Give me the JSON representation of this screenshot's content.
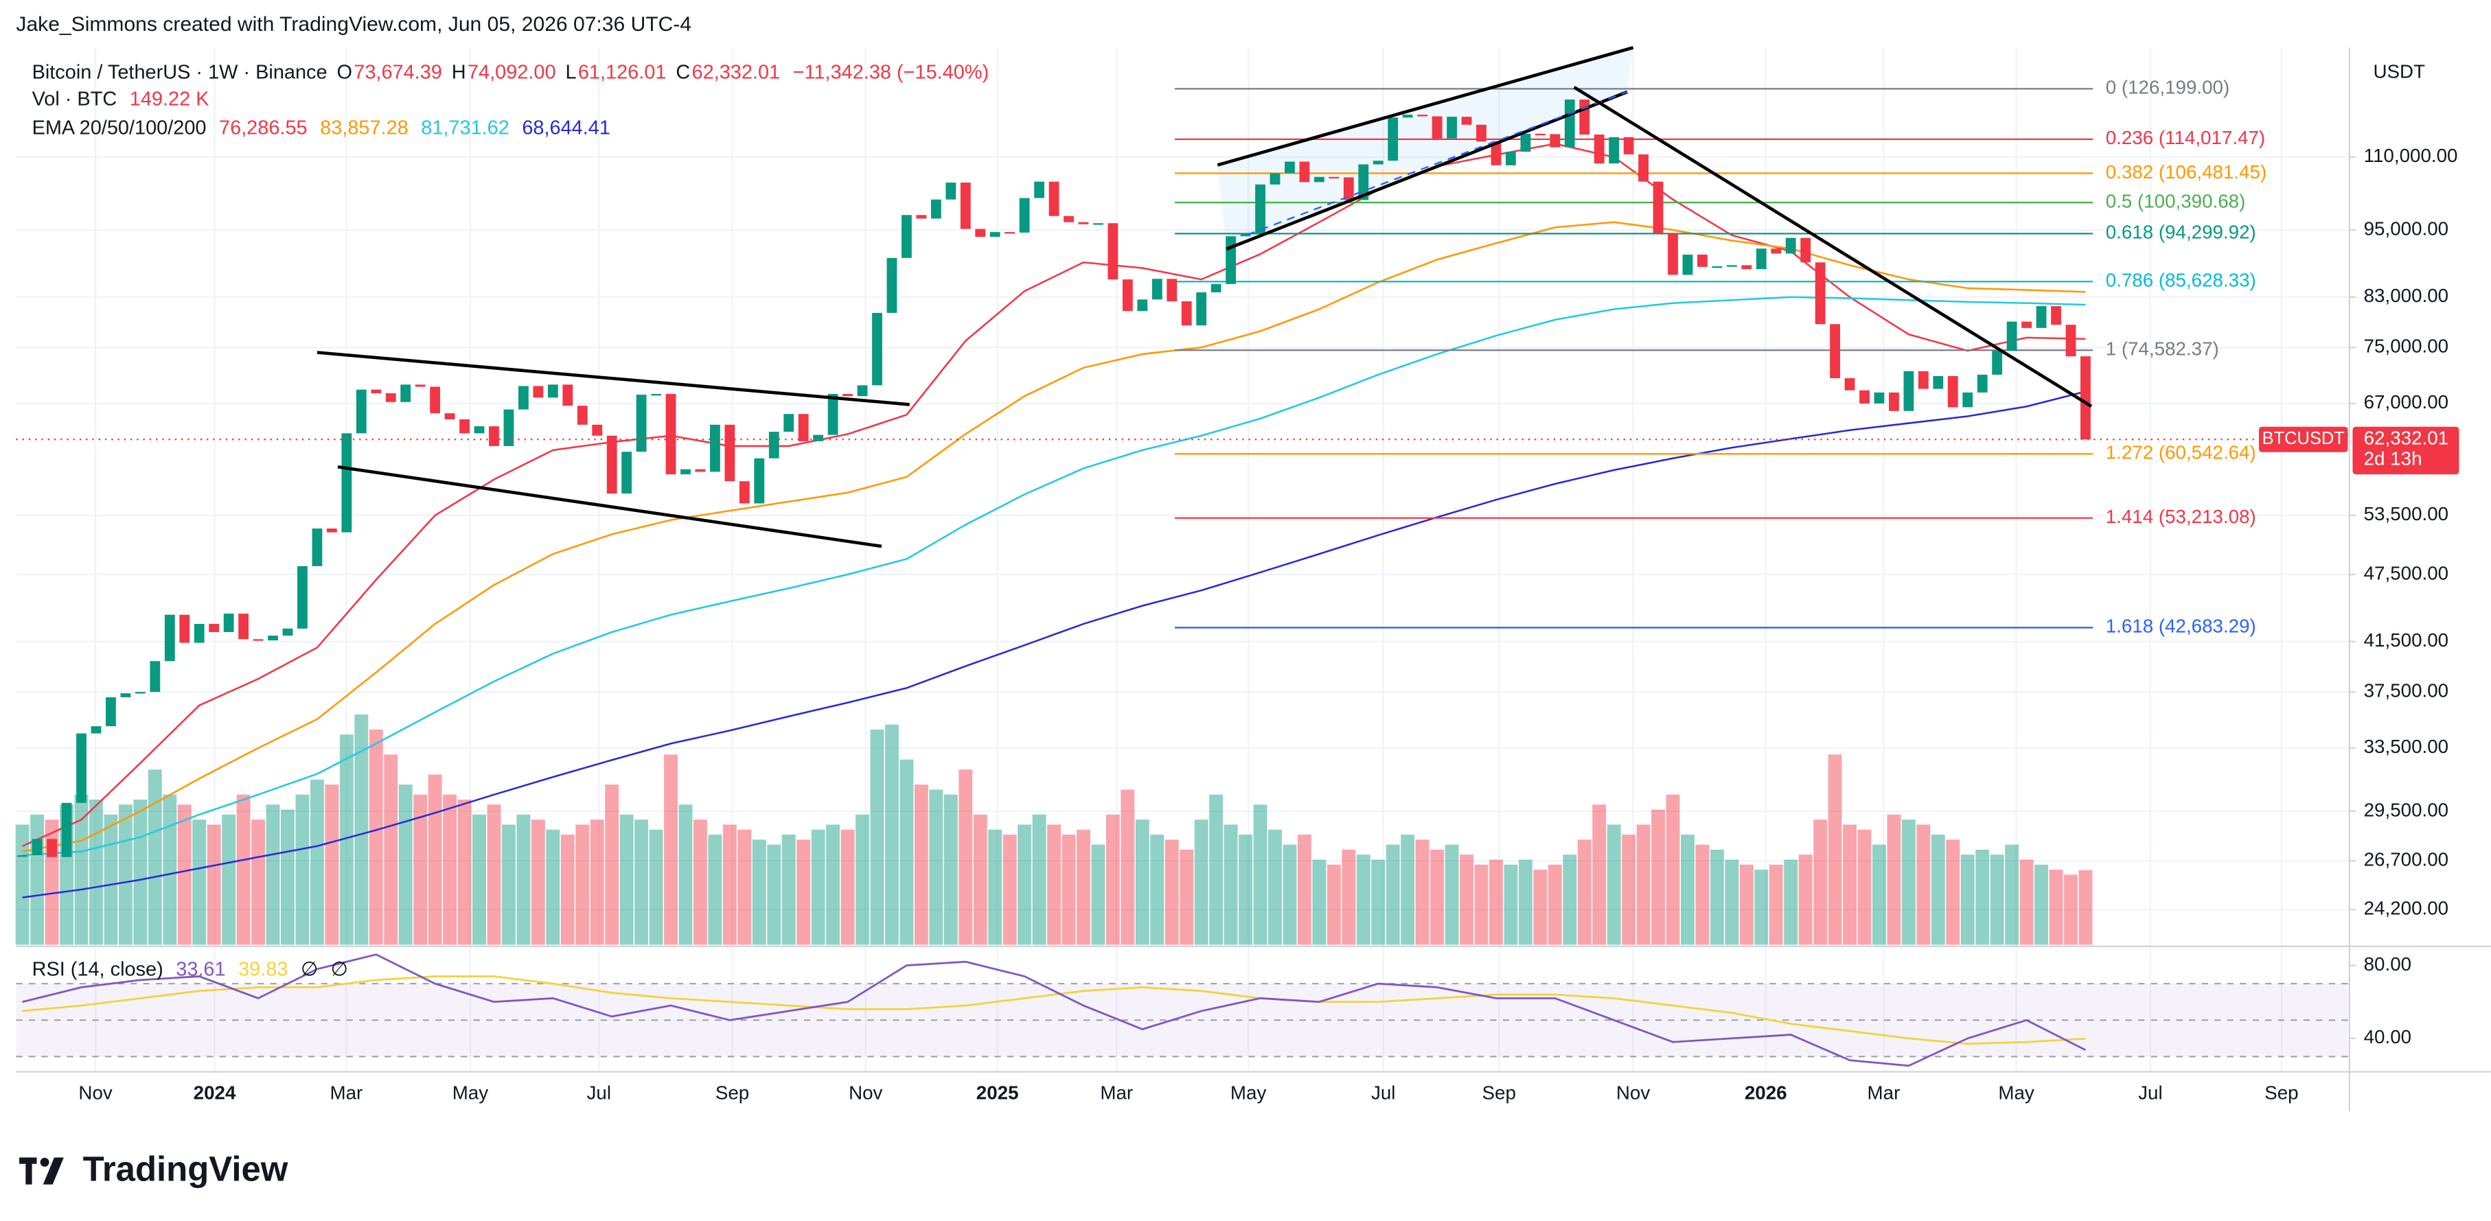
{
  "header": {
    "credit": "Jake_Simmons created with TradingView.com, Jun 05, 2026 07:36 UTC-4",
    "brand": "TradingView"
  },
  "chart_data": {
    "type": "candlestick",
    "title": "Bitcoin / TetherUS · 1W · Binance",
    "ohlc": [
      {
        "key": "O",
        "value": "73,674.39"
      },
      {
        "key": "H",
        "value": "74,092.00"
      },
      {
        "key": "L",
        "value": "61,126.01"
      },
      {
        "key": "C",
        "value": "62,332.01"
      }
    ],
    "change": "−11,342.38 (−15.40%)",
    "currency": "USDT",
    "log_scale": true,
    "grid": true,
    "up_color": "#089981",
    "down_color": "#f23645",
    "xlim": [
      -0.43,
      157.8
    ],
    "xticks": [
      {
        "value": 4.96,
        "label": "Nov"
      },
      {
        "value": 13.04,
        "label": "2024"
      },
      {
        "value": 21.98,
        "label": "Mar"
      },
      {
        "value": 30.39,
        "label": "May"
      },
      {
        "value": 39.12,
        "label": "Jul"
      },
      {
        "value": 48.17,
        "label": "Sep"
      },
      {
        "value": 57.22,
        "label": "Nov"
      },
      {
        "value": 66.16,
        "label": "2025"
      },
      {
        "value": 74.25,
        "label": "Mar"
      },
      {
        "value": 83.19,
        "label": "May"
      },
      {
        "value": 92.35,
        "label": "Jul"
      },
      {
        "value": 100.2,
        "label": "Sep"
      },
      {
        "value": 109.3,
        "label": "Nov"
      },
      {
        "value": 118.3,
        "label": "2026"
      },
      {
        "value": 126.3,
        "label": "Mar"
      },
      {
        "value": 135.3,
        "label": "May"
      },
      {
        "value": 144.4,
        "label": "Jul"
      },
      {
        "value": 153.3,
        "label": "Sep"
      }
    ],
    "ylim": [
      22550,
      137100
    ],
    "yticks": [
      {
        "value": 110000,
        "label": "110,000.00"
      },
      {
        "value": 95000,
        "label": "95,000.00"
      },
      {
        "value": 83000,
        "label": "83,000.00"
      },
      {
        "value": 75000,
        "label": "75,000.00"
      },
      {
        "value": 67000,
        "label": "67,000.00"
      },
      {
        "value": 53500,
        "label": "53,500.00"
      },
      {
        "value": 47500,
        "label": "47,500.00"
      },
      {
        "value": 41500,
        "label": "41,500.00"
      },
      {
        "value": 37500,
        "label": "37,500.00"
      },
      {
        "value": 33500,
        "label": "33,500.00"
      },
      {
        "value": 29500,
        "label": "29,500.00"
      },
      {
        "value": 26700,
        "label": "26,700.00"
      },
      {
        "value": 24200,
        "label": "24,200.00"
      }
    ],
    "series": [
      {
        "name": "BTCUSDT",
        "values": [
          27000,
          27900,
          26900,
          30000,
          34500,
          35000,
          37100,
          37400,
          37500,
          39900,
          43800,
          41400,
          43000,
          42300,
          43900,
          41700,
          41600,
          42000,
          42600,
          48300,
          52100,
          51700,
          63100,
          68900,
          68400,
          67200,
          69600,
          69300,
          65700,
          64900,
          63100,
          64000,
          61500,
          66200,
          69400,
          67800,
          69600,
          66700,
          64200,
          62800,
          55900,
          60800,
          68200,
          68300,
          58100,
          58700,
          58400,
          64200,
          57300,
          54800,
          60000,
          63300,
          65600,
          62100,
          62900,
          68300,
          68000,
          69500,
          80400,
          89800,
          97900,
          97200,
          101000,
          104500,
          95200,
          93700,
          94600,
          94500,
          101300,
          104700,
          97700,
          96500,
          96100,
          96300,
          86000,
          80700,
          82600,
          86100,
          82300,
          78400,
          83800,
          85200,
          93800,
          94300,
          104100,
          106500,
          109000,
          104600,
          105700,
          105600,
          100900,
          108400,
          109200,
          119100,
          119800,
          119400,
          114200,
          119300,
          117400,
          113500,
          108200,
          111200,
          115300,
          115200,
          112200,
          123500,
          115100,
          108600,
          114500,
          110600,
          104700,
          94400,
          86800,
          90400,
          88200,
          88300,
          88500,
          87800,
          91500,
          90600,
          93500,
          89000,
          78600,
          70500,
          68800,
          67000,
          68500,
          66000,
          71500,
          69000,
          70800,
          66500,
          68500,
          71000,
          74500,
          79000,
          78000,
          81500,
          78500,
          73674.39,
          62332.01
        ]
      }
    ],
    "price_tag": {
      "label": "62,332.01",
      "countdown": "2d 13h"
    },
    "volume": {
      "label": "Vol · BTC",
      "last_label": "149.22 K",
      "values": [
        240,
        260,
        250,
        280,
        300,
        290,
        260,
        280,
        290,
        350,
        300,
        280,
        250,
        240,
        260,
        300,
        250,
        280,
        270,
        300,
        330,
        320,
        420,
        460,
        430,
        380,
        320,
        300,
        340,
        300,
        290,
        260,
        280,
        240,
        260,
        250,
        230,
        220,
        240,
        250,
        320,
        260,
        250,
        230,
        380,
        280,
        250,
        220,
        240,
        230,
        210,
        200,
        220,
        210,
        230,
        240,
        230,
        260,
        430,
        440,
        370,
        320,
        310,
        300,
        350,
        260,
        230,
        220,
        240,
        260,
        240,
        220,
        230,
        200,
        260,
        310,
        250,
        220,
        210,
        190,
        250,
        300,
        240,
        220,
        280,
        230,
        200,
        220,
        170,
        160,
        190,
        180,
        170,
        200,
        220,
        210,
        190,
        200,
        180,
        160,
        170,
        160,
        170,
        150,
        160,
        180,
        210,
        280,
        240,
        220,
        240,
        270,
        300,
        220,
        200,
        190,
        170,
        160,
        150,
        160,
        170,
        180,
        250,
        380,
        240,
        230,
        200,
        260,
        250,
        240,
        220,
        210,
        180,
        190,
        180,
        200,
        170,
        160,
        150,
        140,
        149.22
      ]
    },
    "indicators": {
      "label": "EMA 20/50/100/200",
      "x": [
        0,
        4,
        8,
        12,
        16,
        20,
        24,
        28,
        32,
        36,
        40,
        44,
        48,
        52,
        56,
        60,
        64,
        68,
        72,
        76,
        80,
        84,
        88,
        92,
        96,
        100,
        104,
        108,
        112,
        116,
        120,
        124,
        128,
        132,
        136,
        140
      ],
      "ema": [
        {
          "color": "#f23645",
          "last_label": "76,286.55",
          "values": [
            27500,
            29000,
            32500,
            36500,
            38500,
            41000,
            47000,
            53500,
            57500,
            61000,
            62000,
            62800,
            61500,
            61500,
            63000,
            65500,
            76000,
            84000,
            89000,
            88000,
            86000,
            90500,
            96500,
            103000,
            108000,
            110500,
            113000,
            110000,
            101000,
            94000,
            91000,
            83000,
            77000,
            74500,
            76500,
            76286.55
          ]
        },
        {
          "color": "#ff9800",
          "last_label": "83,857.28",
          "values": [
            27200,
            27800,
            29500,
            31500,
            33500,
            35500,
            39000,
            43000,
            46500,
            49500,
            51500,
            53000,
            54000,
            55000,
            56000,
            57800,
            63000,
            68000,
            72000,
            74000,
            75000,
            77500,
            81000,
            85500,
            89500,
            92500,
            95500,
            96500,
            95000,
            93000,
            91500,
            88500,
            86000,
            84500,
            84200,
            83857.28
          ]
        },
        {
          "color": "#22c9de",
          "last_label": "81,731.62",
          "values": [
            27000,
            27200,
            28000,
            29300,
            30500,
            31800,
            33800,
            36000,
            38300,
            40500,
            42300,
            43800,
            45000,
            46200,
            47500,
            49000,
            52500,
            55800,
            58800,
            61000,
            62800,
            65000,
            67800,
            71000,
            74000,
            76800,
            79300,
            81000,
            82000,
            82500,
            83000,
            82800,
            82500,
            82200,
            82000,
            81731.62
          ]
        },
        {
          "color": "#2929d6",
          "last_label": "68,644.41",
          "values": [
            24800,
            25200,
            25700,
            26300,
            26900,
            27500,
            28400,
            29400,
            30500,
            31600,
            32700,
            33800,
            34700,
            35700,
            36700,
            37800,
            39500,
            41200,
            43000,
            44600,
            46000,
            47700,
            49500,
            51400,
            53300,
            55200,
            57000,
            58600,
            60000,
            61300,
            62400,
            63500,
            64400,
            65300,
            66600,
            68644.41
          ]
        }
      ],
      "rsi": {
        "label": "RSI (14, close)",
        "color": "#7e57c2",
        "ma_color": "#f2d43a",
        "ylim": [
          21.7,
          89.6
        ],
        "yticks": [
          {
            "value": 80,
            "label": "80.00"
          },
          {
            "value": 40,
            "label": "40.00"
          }
        ],
        "levels": [
          70,
          50,
          30
        ],
        "last_label": "33.61",
        "ma_last_label": "39.83",
        "extra": [
          "∅",
          "∅"
        ],
        "values": [
          60,
          68,
          72,
          74,
          62,
          78,
          86,
          70,
          60,
          62,
          52,
          58,
          50,
          55,
          60,
          80,
          82,
          74,
          58,
          45,
          55,
          62,
          60,
          70,
          68,
          62,
          62,
          50,
          38,
          40,
          42,
          28,
          25,
          40,
          50,
          33.61
        ],
        "ma_values": [
          55,
          58,
          62,
          66,
          68,
          68,
          72,
          74,
          74,
          70,
          65,
          62,
          60,
          58,
          56,
          56,
          58,
          62,
          66,
          68,
          66,
          62,
          60,
          60,
          62,
          64,
          64,
          62,
          58,
          54,
          48,
          44,
          40,
          37,
          38,
          39.83
        ]
      }
    },
    "fib": {
      "range": [
        78.2,
        140.5
      ],
      "levels": [
        {
          "value": 126199,
          "label": "0 (126,199.00)",
          "color": "#787b86"
        },
        {
          "value": 114017.47,
          "label": "0.236 (114,017.47)",
          "color": "#f23645"
        },
        {
          "value": 106481.45,
          "label": "0.382 (106,481.45)",
          "color": "#ff9800"
        },
        {
          "value": 100390.68,
          "label": "0.5 (100,390.68)",
          "color": "#4caf50"
        },
        {
          "value": 94299.92,
          "label": "0.618 (94,299.92)",
          "color": "#089981"
        },
        {
          "value": 85628.33,
          "label": "0.786 (85,628.33)",
          "color": "#00bcd4"
        },
        {
          "value": 74582.37,
          "label": "1 (74,582.37)",
          "color": "#787b86"
        },
        {
          "value": 60542.64,
          "label": "1.272 (60,542.64)",
          "color": "#ff9800"
        },
        {
          "value": 53213.08,
          "label": "1.414 (53,213.08)",
          "color": "#f23645"
        },
        {
          "value": 42683.29,
          "label": "1.618 (42,683.29)",
          "color": "#2962ff"
        }
      ]
    },
    "drawings": [
      {
        "from": [
          20.0,
          74250
        ],
        "to": [
          60.2,
          66860
        ],
        "color": "#000000"
      },
      {
        "from": [
          21.4,
          58980
        ],
        "to": [
          58.3,
          50270
        ],
        "color": "#000000"
      },
      {
        "from": [
          81.1,
          108260
        ],
        "to": [
          109.3,
          137100
        ],
        "color": "#000000"
      },
      {
        "from": [
          81.7,
          91410
        ],
        "to": [
          108.9,
          125410
        ],
        "color": "#000000"
      },
      {
        "from": [
          83.1,
          94080
        ],
        "to": [
          108.9,
          125410
        ],
        "color": "#2962ff"
      },
      {
        "from": [
          105.3,
          126600
        ],
        "to": [
          140.4,
          66620
        ],
        "color": "#000000"
      }
    ]
  }
}
